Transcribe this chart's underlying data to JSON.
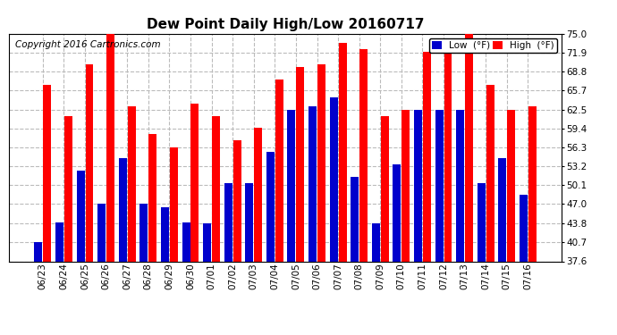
{
  "title": "Dew Point Daily High/Low 20160717",
  "copyright": "Copyright 2016 Cartronics.com",
  "dates": [
    "06/23",
    "06/24",
    "06/25",
    "06/26",
    "06/27",
    "06/28",
    "06/29",
    "06/30",
    "07/01",
    "07/02",
    "07/03",
    "07/04",
    "07/05",
    "07/06",
    "07/07",
    "07/08",
    "07/09",
    "07/10",
    "07/11",
    "07/12",
    "07/13",
    "07/14",
    "07/15",
    "07/16"
  ],
  "high": [
    66.5,
    61.5,
    70.0,
    75.5,
    63.0,
    58.5,
    56.3,
    63.5,
    61.5,
    57.5,
    59.5,
    67.5,
    69.5,
    70.0,
    73.5,
    72.5,
    61.5,
    62.5,
    72.0,
    73.5,
    75.0,
    66.5,
    62.5,
    63.0
  ],
  "low": [
    40.7,
    44.0,
    52.5,
    47.0,
    54.5,
    47.0,
    46.5,
    44.0,
    43.8,
    50.5,
    50.5,
    55.5,
    62.5,
    63.0,
    64.5,
    51.5,
    43.8,
    53.5,
    62.5,
    62.5,
    62.5,
    50.5,
    54.5,
    48.5
  ],
  "ymin": 37.6,
  "ylim": [
    37.6,
    75.0
  ],
  "yticks": [
    37.6,
    40.7,
    43.8,
    47.0,
    50.1,
    53.2,
    56.3,
    59.4,
    62.5,
    65.7,
    68.8,
    71.9,
    75.0
  ],
  "high_color": "#ff0000",
  "low_color": "#0000cc",
  "bg_color": "#ffffff",
  "grid_color": "#bbbbbb",
  "title_fontsize": 11,
  "copyright_fontsize": 7.5
}
